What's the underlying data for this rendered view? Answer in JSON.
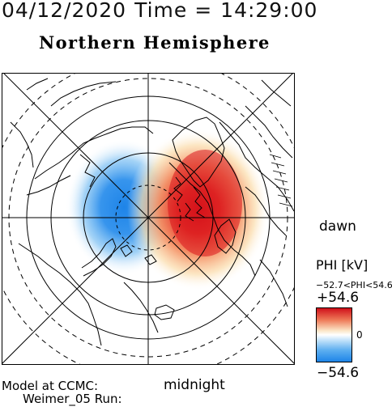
{
  "header": {
    "date": "04/12/2020",
    "time_label": "Time =",
    "time": "14:29:00"
  },
  "title": "Northern Hemisphere",
  "map": {
    "labels": {
      "dawn": "dawn",
      "midnight": "midnight"
    }
  },
  "footer": {
    "line1": "Model at CCMC:",
    "line2": "Weimer_05 Run:"
  },
  "colorbar": {
    "title": "PHI [kV]",
    "range_text": "−52.7<PHI<54.6",
    "max_label": "+54.6",
    "zero_label": "0",
    "min_label": "−54.6",
    "colors": {
      "positive": "#d0101a",
      "negative": "#1e84e8",
      "neutral": "#ffffff"
    }
  }
}
